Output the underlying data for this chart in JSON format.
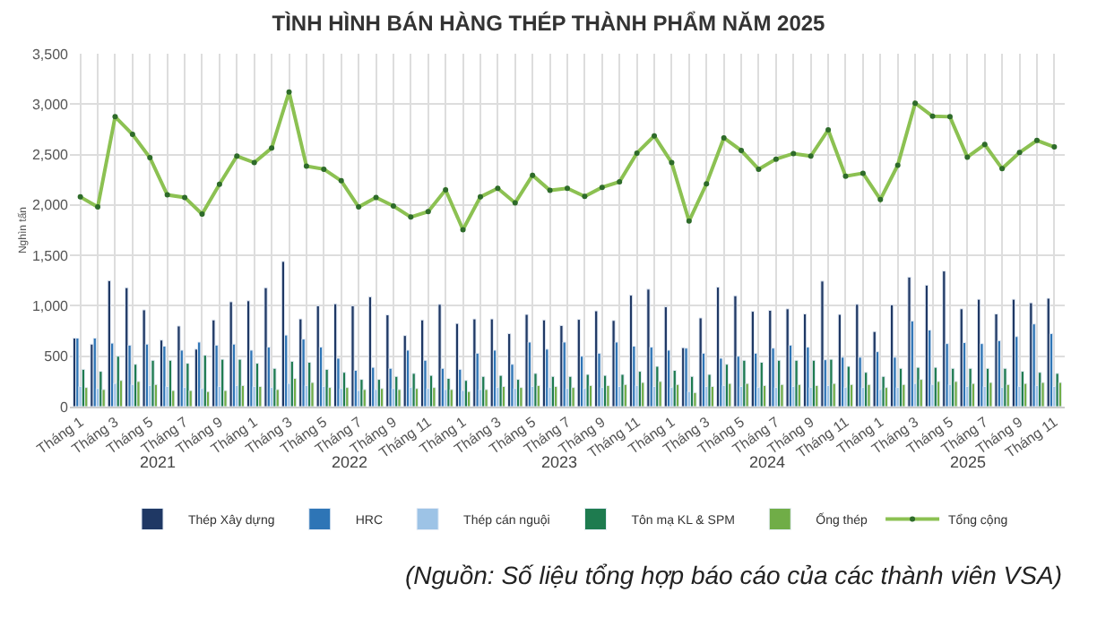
{
  "chart_data": {
    "type": "bar",
    "title": "TÌNH HÌNH BÁN HÀNG THÉP THÀNH PHẨM NĂM 2025",
    "ylabel": "Nghìn tấn",
    "categories": [
      "Tháng 1",
      null,
      "Tháng 3",
      null,
      "Tháng 5",
      null,
      "Tháng 7",
      null,
      "Tháng 9",
      null,
      "Tháng 1",
      null,
      "Tháng 3",
      null,
      "Tháng 5",
      null,
      "Tháng 7",
      null,
      "Tháng 9",
      null,
      "Tháng 11",
      null,
      "Tháng 1",
      null,
      "Tháng 3",
      null,
      "Tháng 5",
      null,
      "Tháng 7",
      null,
      "Tháng 9",
      null,
      "Tháng 11",
      null,
      "Tháng 1",
      null,
      "Tháng 3",
      null,
      "Tháng 5",
      null,
      "Tháng 7",
      null,
      "Tháng 9",
      null,
      "Tháng 11",
      null,
      "Tháng 1",
      null,
      "Tháng 3",
      null,
      "Tháng 5",
      null,
      "Tháng 7",
      null,
      "Tháng 9",
      null,
      "Tháng 11"
    ],
    "series": [
      {
        "name": "Thép Xây dựng",
        "color": "#1f3864",
        "values": [
          680,
          620,
          1250,
          1180,
          960,
          660,
          800,
          570,
          860,
          1040,
          1050,
          1180,
          1440,
          870,
          1000,
          1020,
          1000,
          1090,
          910,
          705,
          860,
          1015,
          825,
          870,
          870,
          725,
          915,
          860,
          805,
          865,
          950,
          855,
          1105,
          1165,
          990,
          585,
          880,
          1185,
          1100,
          945,
          955,
          970,
          920,
          1245,
          915,
          1015,
          745,
          1010,
          1285,
          1205,
          1345,
          970,
          1065,
          920,
          1065,
          1030,
          1075
        ]
      },
      {
        "name": "HRC",
        "color": "#2e75b6",
        "values": [
          680,
          680,
          630,
          610,
          620,
          600,
          560,
          640,
          610,
          620,
          560,
          590,
          710,
          670,
          590,
          480,
          360,
          390,
          380,
          560,
          460,
          380,
          370,
          530,
          560,
          420,
          640,
          570,
          640,
          500,
          530,
          640,
          600,
          590,
          560,
          580,
          530,
          480,
          500,
          530,
          580,
          610,
          590,
          465,
          490,
          490,
          545,
          490,
          850,
          760,
          625,
          635,
          625,
          655,
          695,
          820,
          725
        ]
      },
      {
        "name": "Thép cán nguội",
        "color": "#9dc3e6",
        "values": [
          200,
          180,
          230,
          220,
          210,
          200,
          190,
          180,
          200,
          210,
          200,
          190,
          230,
          210,
          200,
          180,
          160,
          170,
          180,
          190,
          180,
          170,
          160,
          170,
          190,
          180,
          200,
          190,
          180,
          180,
          190,
          200,
          210,
          200,
          190,
          150,
          200,
          210,
          200,
          190,
          190,
          200,
          190,
          210,
          190,
          190,
          170,
          190,
          230,
          220,
          220,
          200,
          200,
          190,
          200,
          210,
          200
        ]
      },
      {
        "name": "Tôn mạ KL & SPM",
        "color": "#1e7b4f",
        "values": [
          370,
          350,
          500,
          420,
          460,
          460,
          430,
          510,
          470,
          470,
          430,
          380,
          450,
          440,
          370,
          340,
          270,
          270,
          300,
          330,
          310,
          280,
          260,
          300,
          310,
          270,
          330,
          300,
          300,
          320,
          310,
          320,
          350,
          400,
          360,
          300,
          320,
          420,
          460,
          440,
          460,
          460,
          460,
          470,
          400,
          340,
          300,
          380,
          390,
          390,
          380,
          380,
          380,
          380,
          350,
          340,
          330
        ]
      },
      {
        "name": "Ống thép",
        "color": "#70ad47",
        "values": [
          190,
          170,
          260,
          250,
          220,
          160,
          160,
          150,
          160,
          210,
          200,
          170,
          280,
          240,
          190,
          190,
          170,
          180,
          170,
          180,
          190,
          170,
          150,
          170,
          200,
          190,
          210,
          200,
          190,
          210,
          210,
          220,
          240,
          250,
          220,
          140,
          200,
          230,
          230,
          210,
          220,
          220,
          210,
          230,
          220,
          220,
          190,
          220,
          270,
          250,
          250,
          230,
          240,
          220,
          230,
          240,
          240
        ]
      },
      {
        "name": "Tổng cộng",
        "type": "line",
        "marker": "circle",
        "color": "#8cc152",
        "values": [
          2080,
          1980,
          2875,
          2700,
          2470,
          2100,
          2075,
          1910,
          2205,
          2485,
          2420,
          2565,
          3120,
          2385,
          2355,
          2240,
          1980,
          2075,
          1990,
          1880,
          1935,
          2150,
          1755,
          2080,
          2165,
          2020,
          2295,
          2145,
          2165,
          2085,
          2175,
          2230,
          2515,
          2685,
          2420,
          1840,
          2210,
          2665,
          2540,
          2355,
          2455,
          2510,
          2485,
          2745,
          2285,
          2315,
          2055,
          2395,
          3010,
          2880,
          2875,
          2475,
          2600,
          2360,
          2520,
          2640,
          2575
        ]
      }
    ],
    "ylim": [
      0,
      3500
    ],
    "yticks": [
      {
        "value": 0,
        "label": "0"
      },
      {
        "value": 500,
        "label": "500"
      },
      {
        "value": 1000,
        "label": "1,000"
      },
      {
        "value": 1500,
        "label": "1,500"
      },
      {
        "value": 2000,
        "label": "2,000"
      },
      {
        "value": 2500,
        "label": "2,500"
      },
      {
        "value": 3000,
        "label": "3,000"
      },
      {
        "value": 3500,
        "label": "3,500"
      }
    ],
    "grid": true,
    "legend": "bottom",
    "annotations": [
      "2021",
      "2022",
      "2023",
      "2024",
      "2025",
      "(Nguồn: Số liệu tổng hợp báo cáo của các thành viên VSA)"
    ]
  }
}
